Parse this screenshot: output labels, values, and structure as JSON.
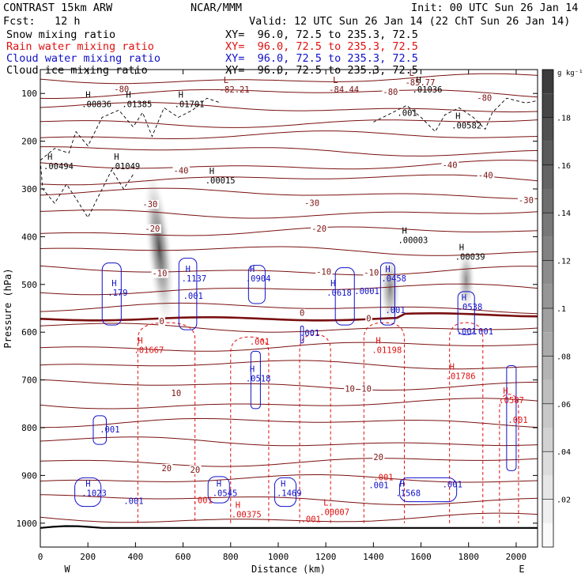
{
  "header": {
    "model": "CONTRAST 15km ARW",
    "center": "NCAR/MMM",
    "init": "Init: 00 UTC Sun 26 Jan 14",
    "fcst": "Fcst:   12 h",
    "valid": "Valid: 12 UTC Sun 26 Jan 14 (22 ChT Sun 26 Jan 14)"
  },
  "fields": [
    {
      "label": "Snow mixing ratio",
      "xy": "XY=  96.0, 72.5 to 235.3, 72.5",
      "color": "#000000"
    },
    {
      "label": "Rain water mixing ratio",
      "xy": "XY=  96.0, 72.5 to 235.3, 72.5",
      "color": "#e01010"
    },
    {
      "label": "Cloud water mixing ratio",
      "xy": "XY=  96.0, 72.5 to 235.3, 72.5",
      "color": "#1010c8"
    },
    {
      "label": "Cloud ice mixing ratio",
      "xy": "XY=  96.0, 72.5 to 235.3, 72.5",
      "color": "#000000"
    }
  ],
  "chart_data": {
    "type": "heatmap",
    "xlabel": "Distance (km)",
    "ylabel": "Pressure (hPa)",
    "xlim": [
      0,
      2090
    ],
    "ylim": [
      1050,
      50
    ],
    "x_ticks": [
      0,
      200,
      400,
      600,
      800,
      1000,
      1200,
      1400,
      1600,
      1800,
      2000
    ],
    "y_ticks": [
      100,
      200,
      300,
      400,
      500,
      600,
      700,
      800,
      900,
      1000
    ],
    "x_end_labels": {
      "left": "W",
      "right": "E"
    },
    "colorbar": {
      "unit": "g kg⁻¹",
      "ticks": [
        0.02,
        0.04,
        0.06,
        0.08,
        0.1,
        0.12,
        0.14,
        0.16,
        0.18
      ],
      "tick_labels": [
        ".02",
        ".04",
        ".06",
        ".08",
        ".1",
        ".12",
        ".14",
        ".16",
        ".18"
      ],
      "vmax": 0.2
    },
    "colors": {
      "temperature": "#7a1010",
      "rain": "#e01010",
      "cloud_water": "#1010c8",
      "snow": "#000000",
      "ice": "#000000"
    },
    "snow_plumes": [
      {
        "x": 500,
        "p_top": 250,
        "p_bot": 600,
        "width_km": 110,
        "peak": 0.17
      },
      {
        "x": 1470,
        "p_top": 430,
        "p_bot": 590,
        "width_km": 90,
        "peak": 0.12
      },
      {
        "x": 1790,
        "p_top": 420,
        "p_bot": 560,
        "width_km": 80,
        "peak": 0.11
      }
    ],
    "temperature_labels": [
      {
        "x": 310,
        "p": 97,
        "text": "-80"
      },
      {
        "x": 1440,
        "p": 103,
        "text": "-80"
      },
      {
        "x": 1835,
        "p": 115,
        "text": "-80"
      },
      {
        "x": 1690,
        "p": 256,
        "text": "-40"
      },
      {
        "x": 560,
        "p": 268,
        "text": "-40"
      },
      {
        "x": 1840,
        "p": 278,
        "text": "-40"
      },
      {
        "x": 1110,
        "p": 336,
        "text": "-30"
      },
      {
        "x": 2010,
        "p": 330,
        "text": "-30"
      },
      {
        "x": 430,
        "p": 338,
        "text": "-30"
      },
      {
        "x": 1140,
        "p": 389,
        "text": "-20"
      },
      {
        "x": 440,
        "p": 389,
        "text": "-20"
      },
      {
        "x": 470,
        "p": 483,
        "text": "-10"
      },
      {
        "x": 1160,
        "p": 480,
        "text": "-10"
      },
      {
        "x": 1360,
        "p": 481,
        "text": "-10"
      },
      {
        "x": 500,
        "p": 583,
        "text": "0"
      },
      {
        "x": 1090,
        "p": 566,
        "text": "0"
      },
      {
        "x": 1370,
        "p": 577,
        "text": "0"
      },
      {
        "x": 550,
        "p": 734,
        "text": "10"
      },
      {
        "x": 1280,
        "p": 725,
        "text": "10"
      },
      {
        "x": 1350,
        "p": 725,
        "text": "10"
      },
      {
        "x": 510,
        "p": 891,
        "text": "20"
      },
      {
        "x": 630,
        "p": 894,
        "text": "20"
      },
      {
        "x": 1400,
        "p": 868,
        "text": "20"
      }
    ],
    "snow_labels": [
      {
        "x": 200,
        "p": 125,
        "letter": "H",
        "value": ".00836"
      },
      {
        "x": 370,
        "p": 125,
        "letter": "H",
        "value": ".01385"
      },
      {
        "x": 590,
        "p": 125,
        "letter": "H",
        "value": ".01701"
      },
      {
        "x": 40,
        "p": 255,
        "letter": "H",
        "value": ".00494"
      },
      {
        "x": 320,
        "p": 255,
        "letter": "H",
        "value": ".01049"
      },
      {
        "x": 720,
        "p": 285,
        "letter": "H",
        "value": ".00015"
      },
      {
        "x": 1530,
        "p": 410,
        "letter": "H",
        "value": ".00003"
      },
      {
        "x": 1770,
        "p": 445,
        "letter": "H",
        "value": ".00039"
      },
      {
        "x": 1590,
        "p": 95,
        "letter": "H",
        "value": ".01036"
      },
      {
        "x": 1755,
        "p": 170,
        "letter": "H",
        "value": ".00582"
      }
    ],
    "ice_labels": [
      {
        "x": 780,
        "p": 95,
        "letter": "L",
        "value": "-82.21"
      },
      {
        "x": 1240,
        "p": 95,
        "letter": "L",
        "value": "-84.44"
      },
      {
        "x": 1560,
        "p": 80,
        "letter": "L",
        "value": "-85.77"
      }
    ],
    "ice_text": [
      {
        "x": 1500,
        "p": 147,
        "text": ".001"
      }
    ],
    "rain_labels": [
      {
        "x": 420,
        "p": 640,
        "letter": "H",
        "value": ".01667"
      },
      {
        "x": 1420,
        "p": 640,
        "letter": "H",
        "value": ".01198"
      },
      {
        "x": 1730,
        "p": 695,
        "letter": "H",
        "value": ".01786"
      },
      {
        "x": 1955,
        "p": 745,
        "letter": "H",
        "value": ".0587"
      },
      {
        "x": 830,
        "p": 985,
        "letter": "H",
        "value": ".00375"
      },
      {
        "x": 1200,
        "p": 980,
        "letter": "L",
        "value": ".00007"
      }
    ],
    "rain_text": [
      {
        "x": 880,
        "p": 626,
        "text": ".001"
      },
      {
        "x": 1400,
        "p": 910,
        "text": ".001"
      },
      {
        "x": 640,
        "p": 958,
        "text": ".001"
      },
      {
        "x": 1095,
        "p": 998,
        "text": ".001"
      },
      {
        "x": 1965,
        "p": 790,
        "text": ".001"
      }
    ],
    "cloud_labels": [
      {
        "x": 310,
        "p": 520,
        "letter": "H",
        "value": ".179"
      },
      {
        "x": 620,
        "p": 490,
        "letter": "H",
        "value": ".1137"
      },
      {
        "x": 890,
        "p": 490,
        "letter": "H",
        "value": ".0904"
      },
      {
        "x": 1230,
        "p": 520,
        "letter": "H",
        "value": ".0618"
      },
      {
        "x": 1460,
        "p": 490,
        "letter": "H",
        "value": ".0458"
      },
      {
        "x": 1780,
        "p": 550,
        "letter": "H",
        "value": ".0538"
      },
      {
        "x": 890,
        "p": 700,
        "letter": "H",
        "value": ".0518"
      },
      {
        "x": 200,
        "p": 940,
        "letter": "H",
        "value": ".1023"
      },
      {
        "x": 750,
        "p": 940,
        "letter": "H",
        "value": ".0545"
      },
      {
        "x": 1020,
        "p": 940,
        "letter": "H",
        "value": ".1469"
      },
      {
        "x": 1520,
        "p": 940,
        "letter": "H",
        "value": ".1568"
      }
    ],
    "cloud_text": [
      {
        "x": 600,
        "p": 530,
        "text": ".001"
      },
      {
        "x": 1320,
        "p": 520,
        "text": ".0001"
      },
      {
        "x": 1450,
        "p": 560,
        "text": ".001"
      },
      {
        "x": 1090,
        "p": 608,
        "text": ".001"
      },
      {
        "x": 1750,
        "p": 605,
        "text": ".001"
      },
      {
        "x": 1820,
        "p": 605,
        "text": ".001"
      },
      {
        "x": 250,
        "p": 810,
        "text": ".001"
      },
      {
        "x": 350,
        "p": 960,
        "text": ".001"
      },
      {
        "x": 1380,
        "p": 927,
        "text": ".001"
      },
      {
        "x": 1690,
        "p": 925,
        "text": ".001"
      }
    ]
  }
}
